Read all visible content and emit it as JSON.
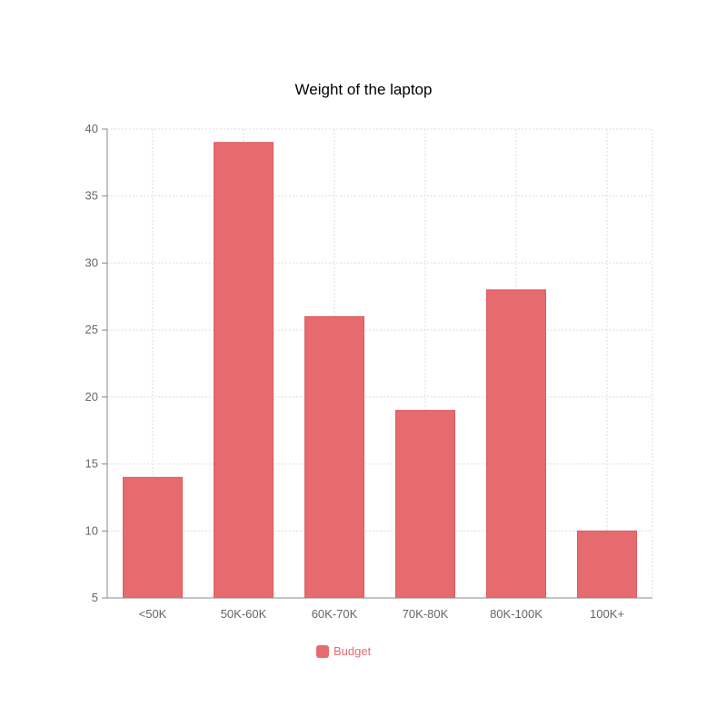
{
  "chart_data": {
    "type": "bar",
    "title": "Weight of the laptop",
    "xlabel": "",
    "ylabel": "",
    "categories": [
      "<50K",
      "50K-60K",
      "60K-70K",
      "70K-80K",
      "80K-100K",
      "100K+"
    ],
    "series": [
      {
        "name": "Budget",
        "values": [
          14,
          39,
          26,
          19,
          28,
          10
        ],
        "color": "#e66b6e"
      }
    ],
    "ylim": [
      5,
      40
    ],
    "yticks": [
      5,
      10,
      15,
      20,
      25,
      30,
      35,
      40
    ],
    "grid": true,
    "legend_position": "bottom"
  }
}
